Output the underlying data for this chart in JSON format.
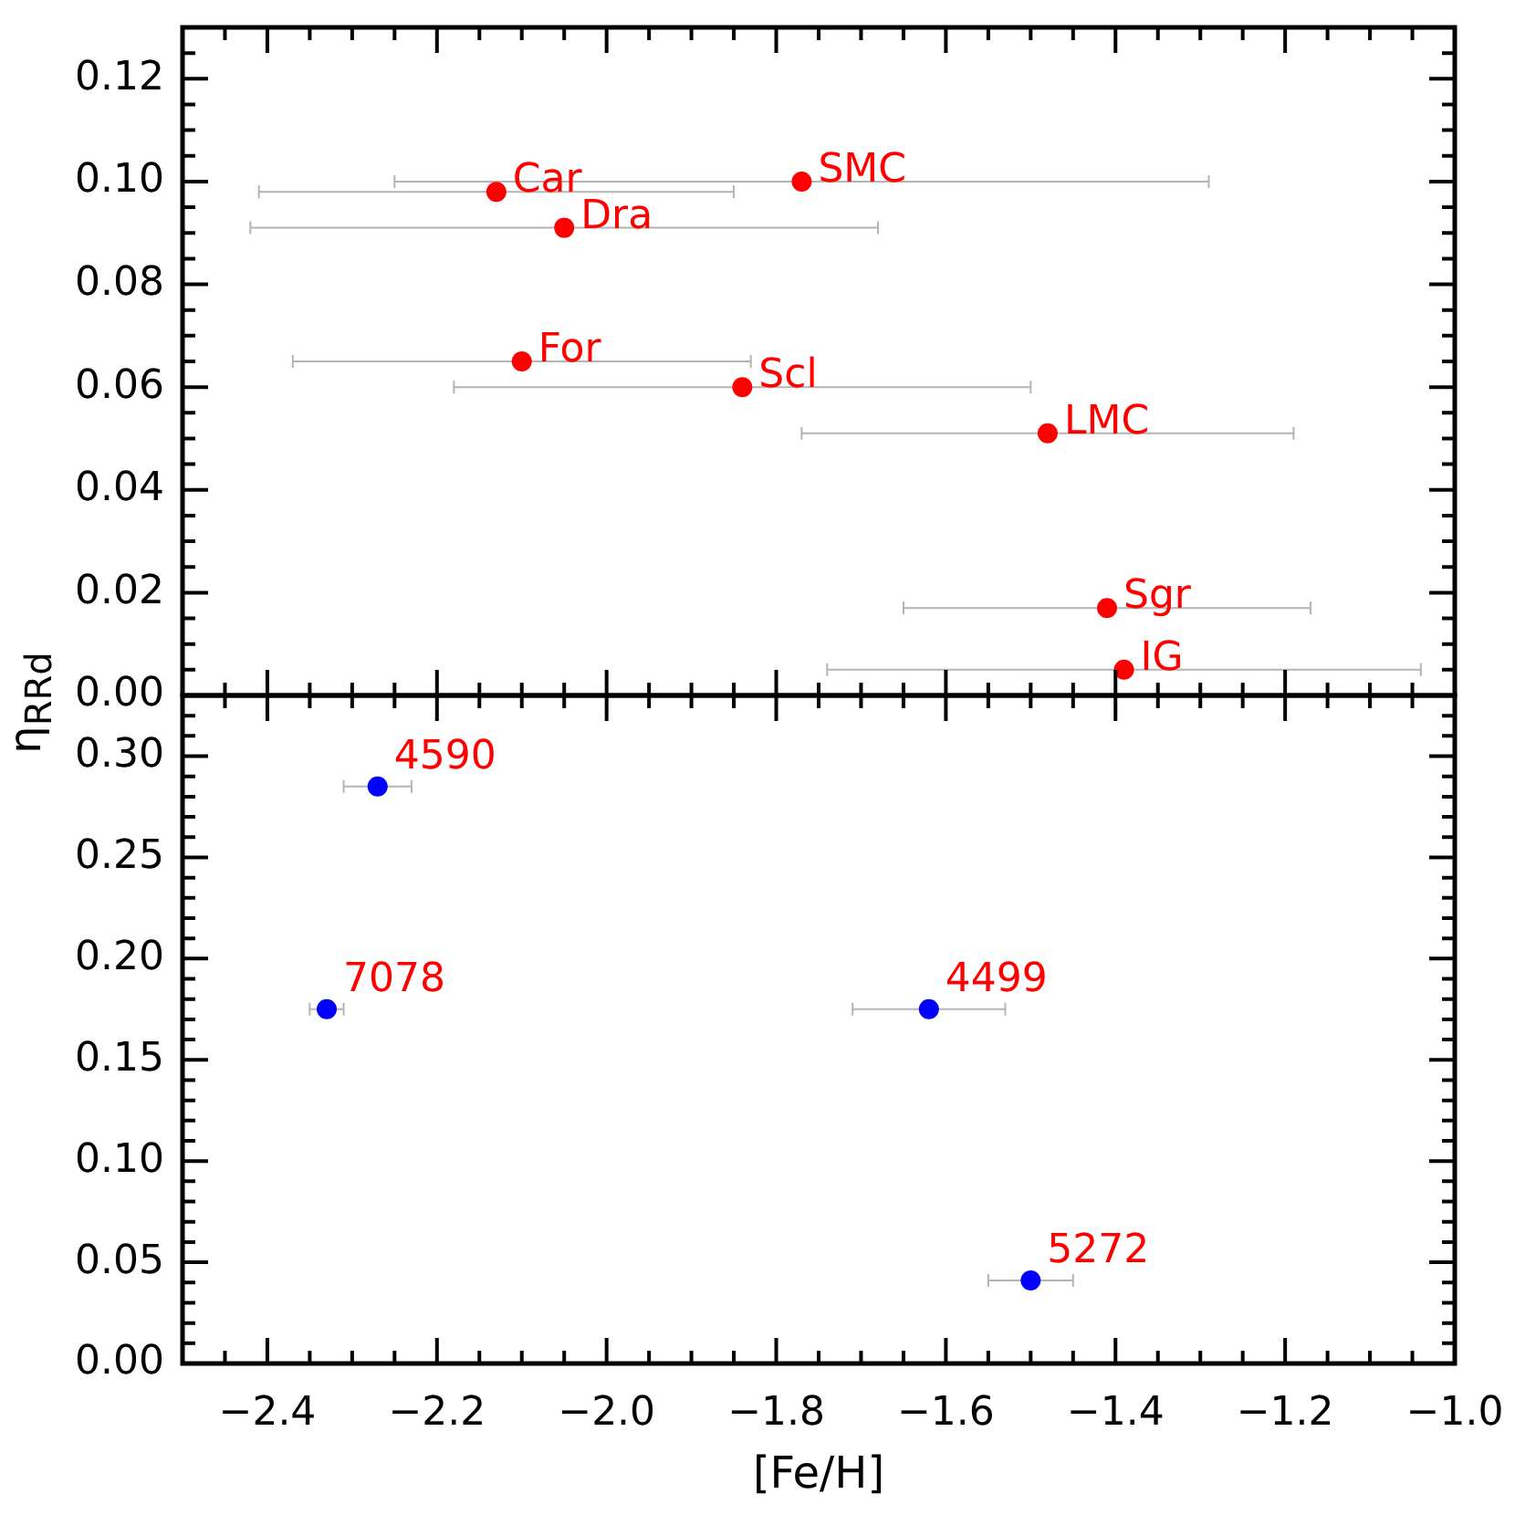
{
  "chart_data": [
    {
      "type": "scatter",
      "ylabel": "η$_{RRd}$",
      "x": [
        -2.13,
        -1.77,
        -2.05,
        -2.1,
        -1.84,
        -1.48,
        -1.41,
        -1.39
      ],
      "values": [
        0.098,
        0.1,
        0.091,
        0.065,
        0.06,
        0.051,
        0.017,
        0.005
      ],
      "xerrors": [
        0.28,
        0.48,
        0.37,
        0.27,
        0.34,
        0.29,
        0.24,
        0.35
      ],
      "color": "#ff0000",
      "marker": "circle",
      "xlim": [
        -2.5,
        -1.0
      ],
      "ylim": [
        0,
        0.13
      ],
      "tick_labels": "y",
      "xticks": [
        {
          "value": -2.45,
          "label": null
        },
        -2.4,
        {
          "value": -2.35,
          "label": null
        },
        {
          "value": -2.3,
          "label": null
        },
        {
          "value": -2.25,
          "label": null
        },
        -2.2,
        {
          "value": -2.15,
          "label": null
        },
        {
          "value": -2.1,
          "label": null
        },
        {
          "value": -2.05,
          "label": null
        },
        -2.0,
        {
          "value": -1.95,
          "label": null
        },
        {
          "value": -1.9,
          "label": null
        },
        {
          "value": -1.85,
          "label": null
        },
        -1.8,
        {
          "value": -1.75,
          "label": null
        },
        {
          "value": -1.7,
          "label": null
        },
        {
          "value": -1.65,
          "label": null
        },
        -1.6,
        {
          "value": -1.55,
          "label": null
        },
        {
          "value": -1.5,
          "label": null
        },
        {
          "value": -1.45,
          "label": null
        },
        -1.4,
        {
          "value": -1.35,
          "label": null
        },
        {
          "value": -1.3,
          "label": null
        },
        {
          "value": -1.25,
          "label": null
        },
        -1.2,
        {
          "value": -1.15,
          "label": null
        },
        {
          "value": -1.1,
          "label": null
        },
        {
          "value": -1.05,
          "label": null
        },
        -1.0
      ],
      "yticks": [
        {
          "value": 0,
          "label": "0.00"
        },
        {
          "value": 0.005,
          "label": null
        },
        {
          "value": 0.01,
          "label": null
        },
        {
          "value": 0.015,
          "label": null
        },
        {
          "value": 0.02,
          "label": "0.02"
        },
        {
          "value": 0.025,
          "label": null
        },
        {
          "value": 0.03,
          "label": null
        },
        {
          "value": 0.035,
          "label": null
        },
        {
          "value": 0.04,
          "label": "0.04"
        },
        {
          "value": 0.045,
          "label": null
        },
        {
          "value": 0.05,
          "label": null
        },
        {
          "value": 0.055,
          "label": null
        },
        {
          "value": 0.06,
          "label": "0.06"
        },
        {
          "value": 0.065,
          "label": null
        },
        {
          "value": 0.07,
          "label": null
        },
        {
          "value": 0.075,
          "label": null
        },
        {
          "value": 0.08,
          "label": "0.08"
        },
        {
          "value": 0.085,
          "label": null
        },
        {
          "value": 0.09,
          "label": null
        },
        {
          "value": 0.095,
          "label": null
        },
        {
          "value": 0.1,
          "label": "0.10"
        },
        {
          "value": 0.105,
          "label": null
        },
        {
          "value": 0.11,
          "label": null
        },
        {
          "value": 0.115,
          "label": null
        },
        {
          "value": 0.12,
          "label": "0.12"
        },
        {
          "value": 0.125,
          "label": null
        }
      ],
      "annotations": [
        {
          "text": "Car",
          "x": -2.13,
          "y": 0.098
        },
        {
          "text": "SMC",
          "x": -1.77,
          "y": 0.1
        },
        {
          "text": "Dra",
          "x": -2.05,
          "y": 0.091
        },
        {
          "text": "For",
          "x": -2.1,
          "y": 0.065
        },
        {
          "text": "Scl",
          "x": -1.84,
          "y": 0.06
        },
        {
          "text": "LMC",
          "x": -1.48,
          "y": 0.051
        },
        {
          "text": "Sgr",
          "x": -1.41,
          "y": 0.017
        },
        {
          "text": "IG",
          "x": -1.39,
          "y": 0.005
        }
      ]
    },
    {
      "type": "scatter",
      "xlabel": "[Fe/H]",
      "x": [
        -2.27,
        -2.33,
        -1.62,
        -1.5
      ],
      "values": [
        0.285,
        0.175,
        0.175,
        0.041
      ],
      "xerrors": [
        0.04,
        0.02,
        0.09,
        0.05
      ],
      "color": "#0000ff",
      "marker": "circle",
      "xlim": [
        -2.5,
        -1.0
      ],
      "ylim": [
        0,
        0.33
      ],
      "xticks": [
        {
          "value": -2.45,
          "label": null
        },
        {
          "value": -2.4,
          "label": "−2.4"
        },
        {
          "value": -2.35,
          "label": null
        },
        {
          "value": -2.3,
          "label": null
        },
        {
          "value": -2.25,
          "label": null
        },
        {
          "value": -2.2,
          "label": "−2.2"
        },
        {
          "value": -2.15,
          "label": null
        },
        {
          "value": -2.1,
          "label": null
        },
        {
          "value": -2.05,
          "label": null
        },
        {
          "value": -2.0,
          "label": "−2.0"
        },
        {
          "value": -1.95,
          "label": null
        },
        {
          "value": -1.9,
          "label": null
        },
        {
          "value": -1.85,
          "label": null
        },
        {
          "value": -1.8,
          "label": "−1.8"
        },
        {
          "value": -1.75,
          "label": null
        },
        {
          "value": -1.7,
          "label": null
        },
        {
          "value": -1.65,
          "label": null
        },
        {
          "value": -1.6,
          "label": "−1.6"
        },
        {
          "value": -1.55,
          "label": null
        },
        {
          "value": -1.5,
          "label": null
        },
        {
          "value": -1.45,
          "label": null
        },
        {
          "value": -1.4,
          "label": "−1.4"
        },
        {
          "value": -1.35,
          "label": null
        },
        {
          "value": -1.3,
          "label": null
        },
        {
          "value": -1.25,
          "label": null
        },
        {
          "value": -1.2,
          "label": "−1.2"
        },
        {
          "value": -1.15,
          "label": null
        },
        {
          "value": -1.1,
          "label": null
        },
        {
          "value": -1.05,
          "label": null
        },
        {
          "value": -1.0,
          "label": "−1.0"
        }
      ],
      "yticks": [
        {
          "value": 0,
          "label": "0.00"
        },
        {
          "value": 0.01,
          "label": null
        },
        {
          "value": 0.02,
          "label": null
        },
        {
          "value": 0.03,
          "label": null
        },
        {
          "value": 0.04,
          "label": null
        },
        {
          "value": 0.05,
          "label": "0.05"
        },
        {
          "value": 0.06,
          "label": null
        },
        {
          "value": 0.07,
          "label": null
        },
        {
          "value": 0.08,
          "label": null
        },
        {
          "value": 0.09,
          "label": null
        },
        {
          "value": 0.1,
          "label": "0.10"
        },
        {
          "value": 0.11,
          "label": null
        },
        {
          "value": 0.12,
          "label": null
        },
        {
          "value": 0.13,
          "label": null
        },
        {
          "value": 0.14,
          "label": null
        },
        {
          "value": 0.15,
          "label": "0.15"
        },
        {
          "value": 0.16,
          "label": null
        },
        {
          "value": 0.17,
          "label": null
        },
        {
          "value": 0.18,
          "label": null
        },
        {
          "value": 0.19,
          "label": null
        },
        {
          "value": 0.2,
          "label": "0.20"
        },
        {
          "value": 0.21,
          "label": null
        },
        {
          "value": 0.22,
          "label": null
        },
        {
          "value": 0.23,
          "label": null
        },
        {
          "value": 0.24,
          "label": null
        },
        {
          "value": 0.25,
          "label": "0.25"
        },
        {
          "value": 0.26,
          "label": null
        },
        {
          "value": 0.27,
          "label": null
        },
        {
          "value": 0.28,
          "label": null
        },
        {
          "value": 0.29,
          "label": null
        },
        {
          "value": 0.3,
          "label": "0.30"
        },
        {
          "value": 0.31,
          "label": null
        },
        {
          "value": 0.32,
          "label": null
        }
      ],
      "annotations": [
        {
          "text": "4590",
          "x": -2.27,
          "y": 0.285
        },
        {
          "text": "7078",
          "x": -2.33,
          "y": 0.175
        },
        {
          "text": "4499",
          "x": -1.62,
          "y": 0.175
        },
        {
          "text": "5272",
          "x": -1.5,
          "y": 0.041
        }
      ]
    }
  ]
}
